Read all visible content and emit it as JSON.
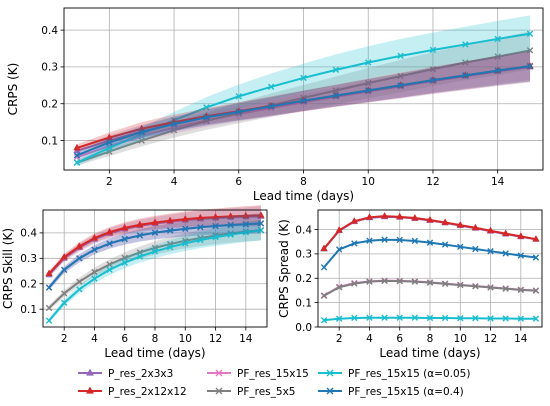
{
  "chart_data": [
    {
      "type": "line",
      "panel": "top",
      "xlabel": "Lead time (days)",
      "ylabel": "CRPS (K)",
      "xlim": [
        0.6,
        15.4
      ],
      "ylim": [
        0.02,
        0.46
      ],
      "xticks": [
        2,
        4,
        6,
        8,
        10,
        12,
        14
      ],
      "yticks": [
        0.1,
        0.2,
        0.3,
        0.4
      ],
      "ytick_labels": [
        "0.1",
        "0.2",
        "0.3",
        "0.4"
      ],
      "grid": true,
      "x": [
        1,
        2,
        3,
        4,
        5,
        6,
        7,
        8,
        9,
        10,
        11,
        12,
        13,
        14,
        15
      ],
      "series": [
        {
          "key": "p3",
          "values": [
            0.072,
            0.1,
            0.125,
            0.145,
            0.163,
            0.178,
            0.192,
            0.207,
            0.221,
            0.235,
            0.248,
            0.262,
            0.275,
            0.288,
            0.3
          ],
          "band": [
            0.01,
            0.014,
            0.018,
            0.02,
            0.022,
            0.024,
            0.026,
            0.028,
            0.03,
            0.032,
            0.034,
            0.036,
            0.038,
            0.04,
            0.042
          ]
        },
        {
          "key": "p12",
          "values": [
            0.08,
            0.108,
            0.132,
            0.15,
            0.166,
            0.18,
            0.194,
            0.208,
            0.222,
            0.236,
            0.25,
            0.264,
            0.277,
            0.29,
            0.302
          ],
          "band": [
            0.01,
            0.014,
            0.018,
            0.02,
            0.022,
            0.024,
            0.026,
            0.028,
            0.03,
            0.032,
            0.034,
            0.036,
            0.038,
            0.04,
            0.042
          ]
        },
        {
          "key": "pf15",
          "values": [
            0.055,
            0.085,
            0.112,
            0.135,
            0.155,
            0.172,
            0.188,
            0.204,
            0.219,
            0.233,
            0.247,
            0.262,
            0.276,
            0.29,
            0.303
          ],
          "band": [
            0.008,
            0.011,
            0.014,
            0.016,
            0.018,
            0.02,
            0.022,
            0.024,
            0.026,
            0.028,
            0.03,
            0.032,
            0.034,
            0.036,
            0.038
          ]
        },
        {
          "key": "pf5",
          "values": [
            0.04,
            0.07,
            0.1,
            0.128,
            0.153,
            0.175,
            0.196,
            0.216,
            0.236,
            0.256,
            0.275,
            0.294,
            0.312,
            0.328,
            0.345
          ],
          "band": [
            0.008,
            0.012,
            0.016,
            0.02,
            0.024,
            0.028,
            0.032,
            0.035,
            0.038,
            0.041,
            0.044,
            0.046,
            0.048,
            0.05,
            0.052
          ]
        },
        {
          "key": "a005",
          "values": [
            0.04,
            0.08,
            0.118,
            0.155,
            0.19,
            0.22,
            0.246,
            0.27,
            0.292,
            0.312,
            0.33,
            0.346,
            0.361,
            0.376,
            0.39
          ],
          "band": [
            0.008,
            0.013,
            0.018,
            0.023,
            0.028,
            0.032,
            0.036,
            0.039,
            0.042,
            0.044,
            0.046,
            0.047,
            0.048,
            0.049,
            0.05
          ]
        },
        {
          "key": "a04",
          "values": [
            0.06,
            0.095,
            0.123,
            0.145,
            0.163,
            0.178,
            0.193,
            0.208,
            0.222,
            0.236,
            0.25,
            0.264,
            0.277,
            0.29,
            0.302
          ],
          "band": [
            0.009,
            0.013,
            0.016,
            0.019,
            0.021,
            0.023,
            0.025,
            0.027,
            0.029,
            0.031,
            0.033,
            0.035,
            0.037,
            0.039,
            0.041
          ]
        }
      ]
    },
    {
      "type": "line",
      "panel": "bottom-left",
      "xlabel": "Lead time (days)",
      "ylabel": "CRPS Skill (K)",
      "xlim": [
        0.6,
        15.4
      ],
      "ylim": [
        0.03,
        0.49
      ],
      "xticks": [
        2,
        4,
        6,
        8,
        10,
        12,
        14
      ],
      "yticks": [
        0.1,
        0.2,
        0.3,
        0.4
      ],
      "ytick_labels": [
        "0.1",
        "0.2",
        "0.3",
        "0.4"
      ],
      "grid": true,
      "x": [
        1,
        2,
        3,
        4,
        5,
        6,
        7,
        8,
        9,
        10,
        11,
        12,
        13,
        14,
        15
      ],
      "series": [
        {
          "key": "p3",
          "values": [
            0.235,
            0.3,
            0.342,
            0.375,
            0.398,
            0.415,
            0.428,
            0.437,
            0.444,
            0.45,
            0.455,
            0.458,
            0.461,
            0.463,
            0.465
          ],
          "band": [
            0.01,
            0.013,
            0.016,
            0.018,
            0.02,
            0.022,
            0.024,
            0.026,
            0.028,
            0.03,
            0.032,
            0.034,
            0.036,
            0.038,
            0.04
          ]
        },
        {
          "key": "p12",
          "values": [
            0.24,
            0.305,
            0.347,
            0.38,
            0.403,
            0.42,
            0.432,
            0.441,
            0.448,
            0.454,
            0.459,
            0.462,
            0.465,
            0.467,
            0.469
          ],
          "band": [
            0.01,
            0.013,
            0.016,
            0.018,
            0.02,
            0.022,
            0.024,
            0.026,
            0.028,
            0.03,
            0.032,
            0.034,
            0.036,
            0.038,
            0.04
          ]
        },
        {
          "key": "pf15",
          "values": [
            0.185,
            0.255,
            0.3,
            0.334,
            0.358,
            0.376,
            0.39,
            0.401,
            0.409,
            0.416,
            0.422,
            0.427,
            0.431,
            0.434,
            0.437
          ],
          "band": [
            0.01,
            0.013,
            0.016,
            0.018,
            0.02,
            0.022,
            0.024,
            0.026,
            0.028,
            0.03,
            0.032,
            0.034,
            0.036,
            0.038,
            0.04
          ]
        },
        {
          "key": "pf5",
          "values": [
            0.105,
            0.162,
            0.208,
            0.246,
            0.276,
            0.302,
            0.323,
            0.341,
            0.356,
            0.369,
            0.38,
            0.39,
            0.398,
            0.405,
            0.411
          ],
          "band": [
            0.01,
            0.013,
            0.016,
            0.018,
            0.02,
            0.022,
            0.024,
            0.026,
            0.028,
            0.03,
            0.032,
            0.034,
            0.036,
            0.038,
            0.04
          ]
        },
        {
          "key": "a005",
          "values": [
            0.055,
            0.125,
            0.178,
            0.22,
            0.255,
            0.283,
            0.307,
            0.327,
            0.344,
            0.359,
            0.372,
            0.383,
            0.393,
            0.402,
            0.41
          ],
          "band": [
            0.01,
            0.013,
            0.016,
            0.018,
            0.02,
            0.022,
            0.024,
            0.026,
            0.028,
            0.03,
            0.032,
            0.034,
            0.036,
            0.038,
            0.04
          ]
        },
        {
          "key": "a04",
          "values": [
            0.185,
            0.255,
            0.3,
            0.334,
            0.358,
            0.376,
            0.39,
            0.401,
            0.409,
            0.416,
            0.422,
            0.427,
            0.431,
            0.434,
            0.437
          ],
          "band": [
            0.01,
            0.013,
            0.016,
            0.018,
            0.02,
            0.022,
            0.024,
            0.026,
            0.028,
            0.03,
            0.032,
            0.034,
            0.036,
            0.038,
            0.04
          ]
        }
      ]
    },
    {
      "type": "line",
      "panel": "bottom-right",
      "xlabel": "Lead time (days)",
      "ylabel": "CRPS Spread (K)",
      "xlim": [
        0.6,
        15.4
      ],
      "ylim": [
        0.0,
        0.48
      ],
      "xticks": [
        2,
        4,
        6,
        8,
        10,
        12,
        14
      ],
      "yticks": [
        0.0,
        0.1,
        0.2,
        0.3,
        0.4
      ],
      "ytick_labels": [
        "0.0",
        "0.1",
        "0.2",
        "0.3",
        "0.4"
      ],
      "grid": true,
      "x": [
        1,
        2,
        3,
        4,
        5,
        6,
        7,
        8,
        9,
        10,
        11,
        12,
        13,
        14,
        15
      ],
      "series": [
        {
          "key": "p3",
          "values": [
            0.32,
            0.395,
            0.432,
            0.448,
            0.452,
            0.45,
            0.445,
            0.437,
            0.427,
            0.416,
            0.405,
            0.393,
            0.381,
            0.37,
            0.36
          ],
          "band": null
        },
        {
          "key": "p12",
          "values": [
            0.322,
            0.397,
            0.434,
            0.45,
            0.455,
            0.452,
            0.447,
            0.439,
            0.429,
            0.418,
            0.407,
            0.395,
            0.383,
            0.372,
            0.36
          ],
          "band": null
        },
        {
          "key": "pf15",
          "values": [
            0.13,
            0.165,
            0.18,
            0.187,
            0.19,
            0.189,
            0.187,
            0.183,
            0.178,
            0.173,
            0.168,
            0.163,
            0.158,
            0.153,
            0.15
          ],
          "band": null
        },
        {
          "key": "pf5",
          "values": [
            0.128,
            0.163,
            0.178,
            0.186,
            0.189,
            0.188,
            0.186,
            0.182,
            0.177,
            0.172,
            0.167,
            0.162,
            0.157,
            0.152,
            0.149
          ],
          "band": null
        },
        {
          "key": "a005",
          "values": [
            0.028,
            0.034,
            0.037,
            0.038,
            0.038,
            0.038,
            0.038,
            0.037,
            0.037,
            0.036,
            0.036,
            0.035,
            0.035,
            0.034,
            0.034
          ],
          "band": null
        },
        {
          "key": "a04",
          "values": [
            0.245,
            0.318,
            0.343,
            0.354,
            0.358,
            0.357,
            0.353,
            0.346,
            0.338,
            0.329,
            0.32,
            0.311,
            0.302,
            0.293,
            0.285
          ],
          "band": null
        }
      ]
    }
  ],
  "legend": {
    "entries": [
      {
        "key": "p3",
        "label": "P_res_2x3x3",
        "color": "#9467bd",
        "marker": "triangle"
      },
      {
        "key": "pf15",
        "label": "PF_res_15x15",
        "color": "#e377c2",
        "marker": "x"
      },
      {
        "key": "a005",
        "label": "PF_res_15x15 (α=0.05)",
        "color": "#17becf",
        "marker": "x"
      },
      {
        "key": "p12",
        "label": "P_res_2x12x12",
        "color": "#d62728",
        "marker": "triangle"
      },
      {
        "key": "pf5",
        "label": "PF_res_5x5",
        "color": "#7f7f7f",
        "marker": "x"
      },
      {
        "key": "a04",
        "label": "PF_res_15x15 (α=0.4)",
        "color": "#1f77b4",
        "marker": "x"
      }
    ]
  },
  "draw_order": [
    "pf15",
    "pf5",
    "a005",
    "p3",
    "p12",
    "a04"
  ]
}
